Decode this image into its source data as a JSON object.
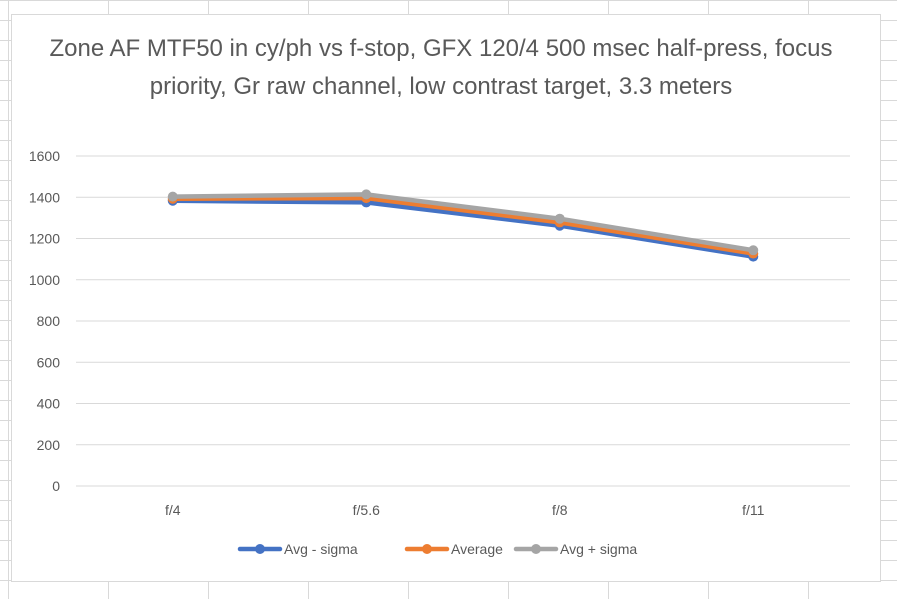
{
  "chart_data": {
    "type": "line",
    "title": "Zone AF MTF50 in cy/ph vs f-stop, GFX 120/4 500 msec half-press, focus priority, Gr raw channel, low contrast target, 3.3 meters",
    "categories": [
      "f/4",
      "f/5.6",
      "f/8",
      "f/11"
    ],
    "y_ticks": [
      "0",
      "200",
      "400",
      "600",
      "800",
      "1000",
      "1200",
      "1400",
      "1600"
    ],
    "ylim": [
      0,
      1600
    ],
    "grid": true,
    "legend_position": "bottom",
    "series": [
      {
        "name": "Avg - sigma",
        "color": "#4472c4",
        "values": [
          1383,
          1375,
          1262,
          1112
        ]
      },
      {
        "name": "Average",
        "color": "#ed7d31",
        "values": [
          1393,
          1396,
          1278,
          1127
        ]
      },
      {
        "name": "Avg + sigma",
        "color": "#a5a5a5",
        "values": [
          1403,
          1414,
          1296,
          1143
        ]
      }
    ]
  }
}
